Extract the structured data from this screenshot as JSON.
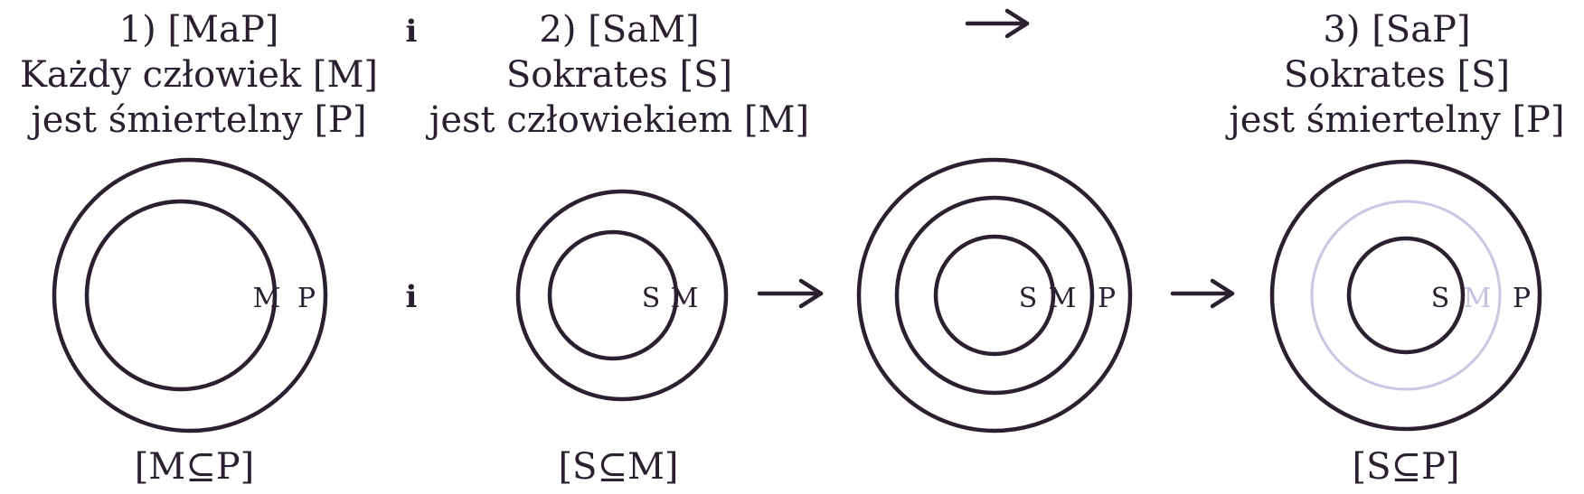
{
  "premise1": {
    "heading": [
      "1) [MaP]",
      "Każdy człowiek [M]",
      "jest śmiertelny [P]"
    ],
    "labels": [
      "M",
      "P"
    ],
    "formula": "[M⊆P]"
  },
  "conjunction": [
    "i",
    "i"
  ],
  "premise2": {
    "heading": [
      "2) [SaM]",
      "Sokrates [S]",
      "jest człowiekiem [M]"
    ],
    "labels": [
      "S",
      "M"
    ],
    "formula": "[S⊆M]"
  },
  "combined": {
    "labels": [
      "S",
      "M",
      "P"
    ]
  },
  "conclusion": {
    "heading": [
      "3) [SaP]",
      "Sokrates [S]",
      "jest śmiertelny [P]"
    ],
    "labels": [
      "S",
      "M",
      "P"
    ],
    "formula": "[S⊆P]"
  },
  "colors": {
    "ink": "#2a2030",
    "faded": "#c9c7e4"
  }
}
